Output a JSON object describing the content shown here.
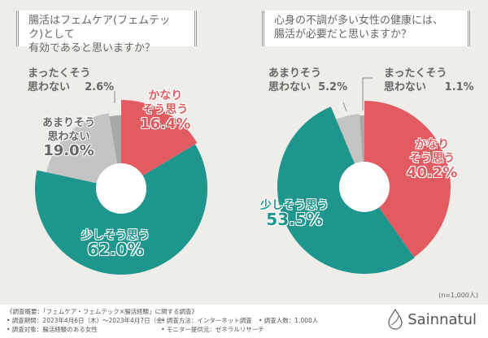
{
  "chart_data": [
    {
      "type": "pie",
      "title": "腸活はフェムケア(フェムテック)として有効であると思いますか？",
      "categories": [
        "かなりそう思う",
        "少しそう思う",
        "あまりそう思わない",
        "まったくそう思わない"
      ],
      "values": [
        16.4,
        62.0,
        19.0,
        2.6
      ],
      "colors": [
        "#e25b61",
        "#1e968d",
        "#c4c4c4",
        "#a8a8a8"
      ],
      "labels": [
        "16.4%",
        "62.0%",
        "19.0%",
        "2.6%"
      ]
    },
    {
      "type": "pie",
      "title": "心身の不調が多い女性の健康には、腸活が必要だと思いますか？",
      "categories": [
        "かなりそう思う",
        "少しそう思う",
        "あまりそう思わない",
        "まったくそう思わない"
      ],
      "values": [
        40.2,
        53.5,
        5.2,
        1.1
      ],
      "colors": [
        "#e25b61",
        "#1e968d",
        "#c4c4c4",
        "#a8a8a8"
      ],
      "labels": [
        "40.2%",
        "53.5%",
        "5.2%",
        "1.1%"
      ]
    }
  ],
  "q1": {
    "l1": "腸活はフェムケア(フェムテック)として",
    "l2": "有効であると思いますか？"
  },
  "q2": {
    "l1": "心身の不調が多い女性の健康には、",
    "l2": "腸活が必要だと思いますか？"
  },
  "labels": {
    "kanari1": "かなり",
    "kanari2": "そう思う",
    "sukoshi": "少しそう思う",
    "amari1": "あまりそう",
    "amari2": "思わない",
    "mattaku1": "まったくそう",
    "mattaku2": "思わない"
  },
  "n": "(n=1,000人)",
  "footer": {
    "title": "《調査概要：「フェムケア・フェムテック×腸活経験」に関する調査》",
    "period": "• 調査期間：2023年4月6日（木）～2023年4月7日（金）",
    "target": "• 調査対象：腸活経験のある女性",
    "method": "• 調査方法：インターネット調査",
    "provider": "• モニター提供元：ゼネラルリサーチ",
    "count": "• 調査人数：1,000人"
  },
  "brand": "Sainnatul"
}
